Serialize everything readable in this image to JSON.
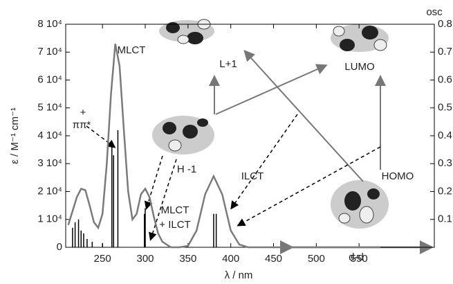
{
  "chart_data": {
    "type": "line",
    "xlabel": "λ / nm",
    "ylabel": "ε / M⁻¹ cm⁻¹",
    "y2label": "osc",
    "xlim": [
      207,
      638
    ],
    "ylim": [
      0,
      80000
    ],
    "y2lim": [
      0,
      0.8
    ],
    "xticks": [
      250,
      300,
      350,
      400,
      450,
      500,
      550
    ],
    "yticks": [
      0,
      {
        "value": 10000,
        "label": "1 10⁴"
      },
      {
        "value": 20000,
        "label": "2 10⁴"
      },
      {
        "value": 30000,
        "label": "3 10⁴"
      },
      {
        "value": 40000,
        "label": "4 10⁴"
      },
      {
        "value": 50000,
        "label": "5 10⁴"
      },
      {
        "value": 60000,
        "label": "6 10⁴"
      },
      {
        "value": 70000,
        "label": "7 10⁴"
      },
      {
        "value": 80000,
        "label": "8 10⁴"
      }
    ],
    "y2ticks": [
      0.1,
      0.2,
      0.3,
      0.4,
      0.5,
      0.6,
      0.7,
      0.8
    ],
    "series": [
      {
        "color": "#7a7a7a",
        "x": [
          210,
          215,
          220,
          225,
          230,
          235,
          240,
          245,
          250,
          255,
          260,
          265,
          270,
          275,
          280,
          285,
          290,
          295,
          300,
          305,
          310,
          315,
          320,
          330,
          340,
          350,
          360,
          370,
          380,
          390,
          400,
          410,
          420,
          450,
          500,
          550,
          575
        ],
        "values": [
          8000,
          13000,
          18000,
          21000,
          20500,
          15000,
          9000,
          7000,
          12000,
          30000,
          55000,
          73000,
          65000,
          42000,
          20000,
          10000,
          12000,
          19000,
          21000,
          18000,
          11000,
          5000,
          2000,
          0,
          0,
          500,
          6000,
          19000,
          25500,
          19000,
          6000,
          1000,
          0,
          0,
          0,
          0,
          0
        ]
      },
      {
        "color": "#000000",
        "axis": "y2",
        "style": "sticks",
        "x": [
          215,
          218,
          222,
          225,
          228,
          232,
          238,
          250,
          261,
          263,
          268,
          299,
          300,
          380,
          383
        ],
        "values": [
          0.07,
          0.09,
          0.1,
          0.06,
          0.05,
          0.03,
          0.02,
          0.015,
          0.38,
          0.33,
          0.42,
          0.12,
          0.14,
          0.12,
          0.12
        ]
      }
    ],
    "annotations": [
      "MLCT",
      "+",
      "ππ*",
      "H -1",
      "L+1",
      "LUMO",
      "ILCT",
      "HOMO",
      "MLCT",
      "+ ILCT",
      "d-d"
    ]
  }
}
